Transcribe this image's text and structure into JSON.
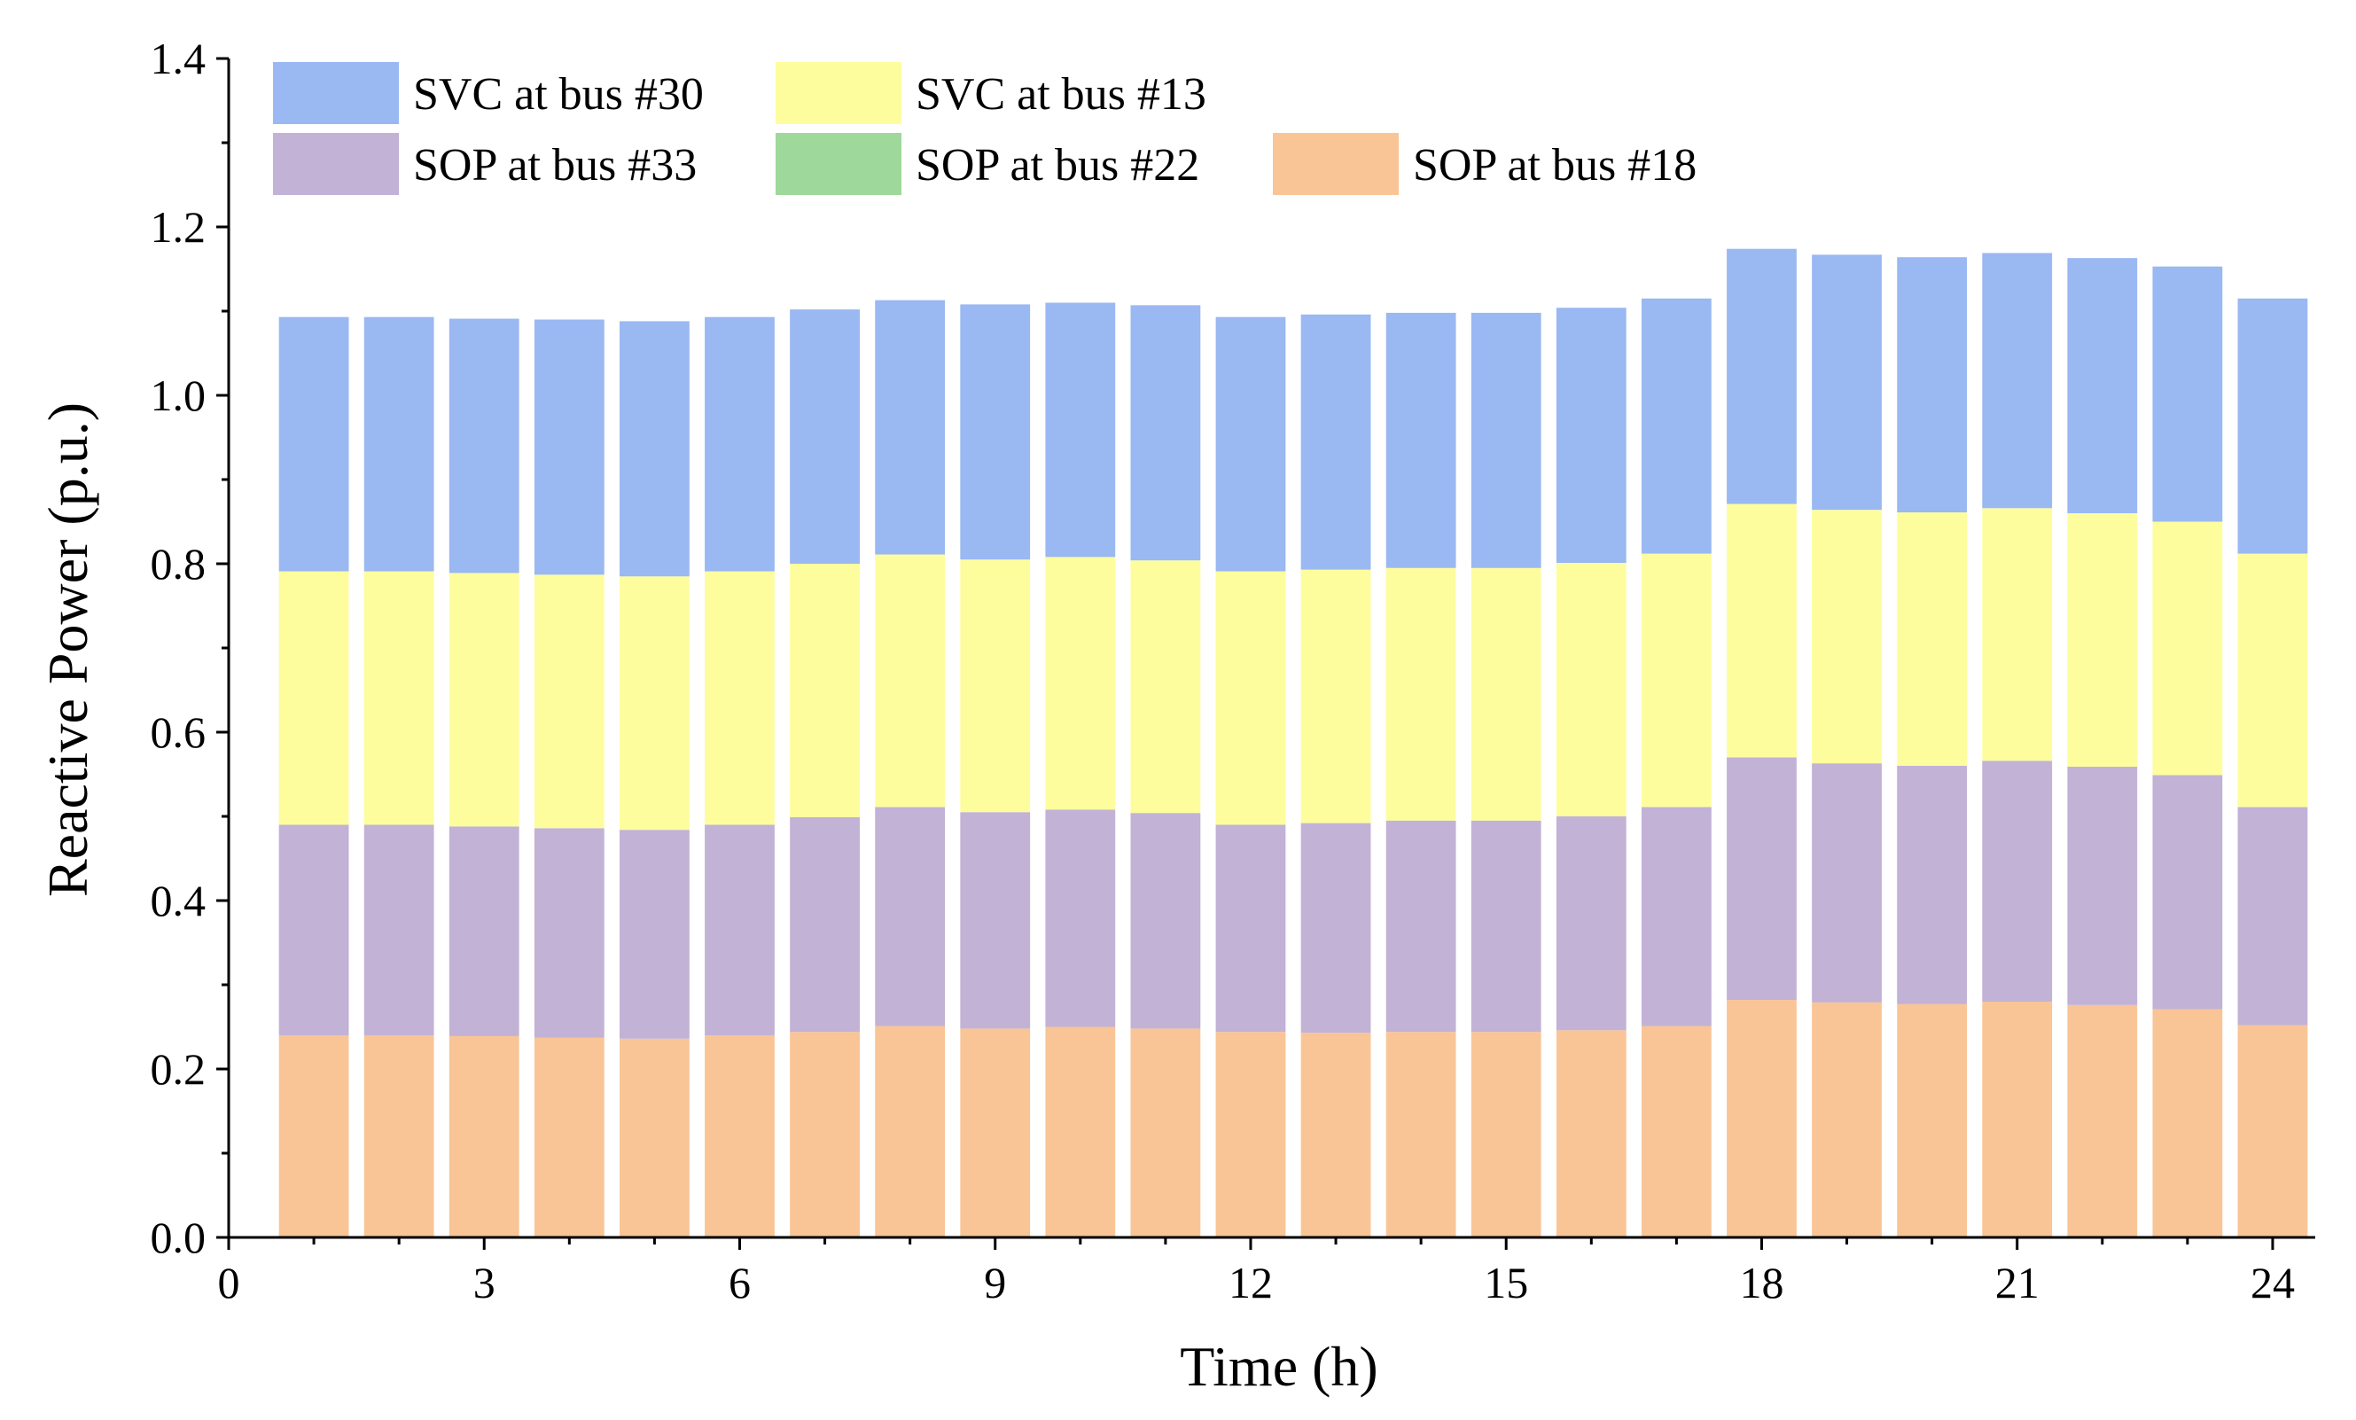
{
  "chart_data": {
    "type": "bar",
    "stacked": true,
    "title": "",
    "xlabel": "Time (h)",
    "ylabel": "Reactive Power (p.u.)",
    "xlim": [
      0,
      24.5
    ],
    "ylim": [
      0,
      1.4
    ],
    "x_ticks": [
      "0",
      "3",
      "6",
      "9",
      "12",
      "15",
      "18",
      "21",
      "24"
    ],
    "y_ticks": [
      "0.0",
      "0.2",
      "0.4",
      "0.6",
      "0.8",
      "1.0",
      "1.2",
      "1.4"
    ],
    "categories": [
      1,
      2,
      3,
      4,
      5,
      6,
      7,
      8,
      9,
      10,
      11,
      12,
      13,
      14,
      15,
      16,
      17,
      18,
      19,
      20,
      21,
      22,
      23,
      24
    ],
    "series": [
      {
        "name": "SOP at bus #18",
        "color": "#f9c596",
        "values": [
          0.24,
          0.24,
          0.239,
          0.237,
          0.236,
          0.24,
          0.244,
          0.251,
          0.248,
          0.25,
          0.248,
          0.244,
          0.243,
          0.244,
          0.244,
          0.246,
          0.251,
          0.282,
          0.279,
          0.277,
          0.28,
          0.276,
          0.271,
          0.252
        ]
      },
      {
        "name": "SOP at bus #22",
        "color": "#9fd89b",
        "values": [
          0,
          0,
          0,
          0,
          0,
          0,
          0,
          0,
          0,
          0,
          0,
          0,
          0,
          0,
          0,
          0,
          0,
          0,
          0,
          0,
          0,
          0,
          0,
          0
        ]
      },
      {
        "name": "SOP at bus #33",
        "color": "#c2b2d6",
        "values": [
          0.25,
          0.25,
          0.249,
          0.249,
          0.248,
          0.25,
          0.255,
          0.26,
          0.257,
          0.258,
          0.256,
          0.246,
          0.249,
          0.251,
          0.251,
          0.254,
          0.26,
          0.288,
          0.284,
          0.283,
          0.286,
          0.283,
          0.278,
          0.259
        ]
      },
      {
        "name": "SVC at bus #13",
        "color": "#fdfd9e",
        "values": [
          0.301,
          0.301,
          0.301,
          0.301,
          0.301,
          0.301,
          0.301,
          0.3,
          0.3,
          0.3,
          0.3,
          0.301,
          0.301,
          0.3,
          0.3,
          0.301,
          0.301,
          0.301,
          0.301,
          0.301,
          0.3,
          0.301,
          0.301,
          0.301
        ]
      },
      {
        "name": "SVC at bus #30",
        "color": "#9ab8f2",
        "values": [
          0.302,
          0.302,
          0.302,
          0.303,
          0.303,
          0.302,
          0.302,
          0.302,
          0.303,
          0.302,
          0.303,
          0.302,
          0.303,
          0.303,
          0.303,
          0.303,
          0.303,
          0.303,
          0.303,
          0.303,
          0.303,
          0.303,
          0.303,
          0.303
        ]
      }
    ],
    "legend": {
      "placement": "top-left",
      "rows": [
        [
          "SVC at bus #30",
          "SVC at bus #13"
        ],
        [
          "SOP at bus #33",
          "SOP at bus #22",
          "SOP at bus #18"
        ]
      ]
    }
  }
}
